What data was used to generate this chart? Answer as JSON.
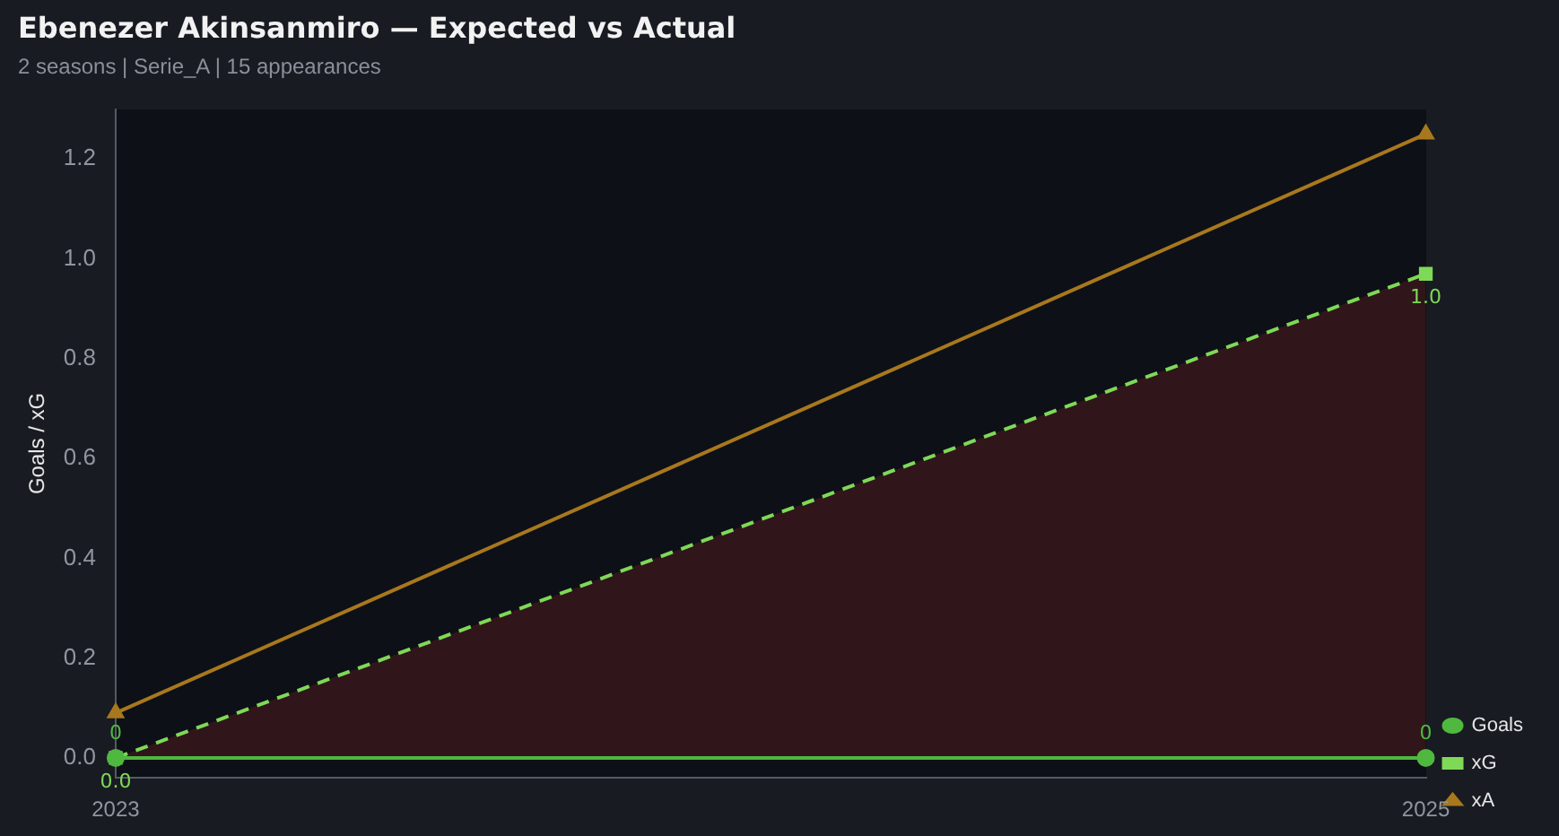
{
  "chart_data": {
    "type": "line",
    "title": "Ebenezer Akinsanmiro — Expected vs Actual",
    "subtitle": "2 seasons | Serie_A | 15 appearances",
    "ylabel": "Goals / xG",
    "categories": [
      "2023",
      "2025"
    ],
    "ylim": [
      -0.04,
      1.3
    ],
    "yticks": [
      {
        "value": 0.0,
        "label": "0.0"
      },
      {
        "value": 0.2,
        "label": "0.2"
      },
      {
        "value": 0.4,
        "label": "0.4"
      },
      {
        "value": 0.6,
        "label": "0.6"
      },
      {
        "value": 0.8,
        "label": "0.8"
      },
      {
        "value": 1.0,
        "label": "1.0"
      },
      {
        "value": 1.2,
        "label": "1.2"
      }
    ],
    "series": [
      {
        "name": "Goals",
        "color": "#4fb83f",
        "values": [
          0,
          0
        ],
        "marker": "circle",
        "line_style": "solid",
        "value_labels": [
          "0",
          "0"
        ]
      },
      {
        "name": "xG",
        "color": "#7ed957",
        "values": [
          0.0,
          0.97
        ],
        "marker": "square",
        "line_style": "dashed",
        "value_labels": [
          "0.0",
          "1.0"
        ],
        "lower": [
          0,
          0
        ],
        "upper": [
          0.0,
          0.97
        ]
      },
      {
        "name": "xA",
        "color": "#a8781c",
        "values": [
          0.09,
          1.25
        ],
        "marker": "triangle",
        "line_style": "solid"
      }
    ],
    "grid": false,
    "legend": "bottom right"
  }
}
